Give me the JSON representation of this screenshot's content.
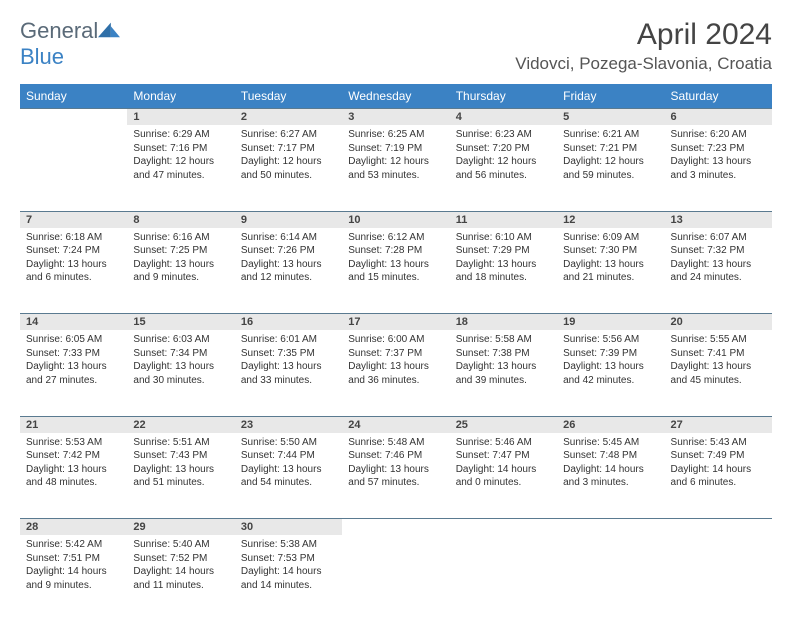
{
  "logo": {
    "word1": "General",
    "word2": "Blue"
  },
  "title": "April 2024",
  "location": "Vidovci, Pozega-Slavonia, Croatia",
  "colors": {
    "header_bg": "#3b82c4",
    "header_text": "#ffffff",
    "daynum_bg": "#e8e8e8",
    "rule": "#5a7a90",
    "body_text": "#333333"
  },
  "dayNames": [
    "Sunday",
    "Monday",
    "Tuesday",
    "Wednesday",
    "Thursday",
    "Friday",
    "Saturday"
  ],
  "weeks": [
    [
      null,
      {
        "n": "1",
        "sr": "Sunrise: 6:29 AM",
        "ss": "Sunset: 7:16 PM",
        "dl": "Daylight: 12 hours and 47 minutes."
      },
      {
        "n": "2",
        "sr": "Sunrise: 6:27 AM",
        "ss": "Sunset: 7:17 PM",
        "dl": "Daylight: 12 hours and 50 minutes."
      },
      {
        "n": "3",
        "sr": "Sunrise: 6:25 AM",
        "ss": "Sunset: 7:19 PM",
        "dl": "Daylight: 12 hours and 53 minutes."
      },
      {
        "n": "4",
        "sr": "Sunrise: 6:23 AM",
        "ss": "Sunset: 7:20 PM",
        "dl": "Daylight: 12 hours and 56 minutes."
      },
      {
        "n": "5",
        "sr": "Sunrise: 6:21 AM",
        "ss": "Sunset: 7:21 PM",
        "dl": "Daylight: 12 hours and 59 minutes."
      },
      {
        "n": "6",
        "sr": "Sunrise: 6:20 AM",
        "ss": "Sunset: 7:23 PM",
        "dl": "Daylight: 13 hours and 3 minutes."
      }
    ],
    [
      {
        "n": "7",
        "sr": "Sunrise: 6:18 AM",
        "ss": "Sunset: 7:24 PM",
        "dl": "Daylight: 13 hours and 6 minutes."
      },
      {
        "n": "8",
        "sr": "Sunrise: 6:16 AM",
        "ss": "Sunset: 7:25 PM",
        "dl": "Daylight: 13 hours and 9 minutes."
      },
      {
        "n": "9",
        "sr": "Sunrise: 6:14 AM",
        "ss": "Sunset: 7:26 PM",
        "dl": "Daylight: 13 hours and 12 minutes."
      },
      {
        "n": "10",
        "sr": "Sunrise: 6:12 AM",
        "ss": "Sunset: 7:28 PM",
        "dl": "Daylight: 13 hours and 15 minutes."
      },
      {
        "n": "11",
        "sr": "Sunrise: 6:10 AM",
        "ss": "Sunset: 7:29 PM",
        "dl": "Daylight: 13 hours and 18 minutes."
      },
      {
        "n": "12",
        "sr": "Sunrise: 6:09 AM",
        "ss": "Sunset: 7:30 PM",
        "dl": "Daylight: 13 hours and 21 minutes."
      },
      {
        "n": "13",
        "sr": "Sunrise: 6:07 AM",
        "ss": "Sunset: 7:32 PM",
        "dl": "Daylight: 13 hours and 24 minutes."
      }
    ],
    [
      {
        "n": "14",
        "sr": "Sunrise: 6:05 AM",
        "ss": "Sunset: 7:33 PM",
        "dl": "Daylight: 13 hours and 27 minutes."
      },
      {
        "n": "15",
        "sr": "Sunrise: 6:03 AM",
        "ss": "Sunset: 7:34 PM",
        "dl": "Daylight: 13 hours and 30 minutes."
      },
      {
        "n": "16",
        "sr": "Sunrise: 6:01 AM",
        "ss": "Sunset: 7:35 PM",
        "dl": "Daylight: 13 hours and 33 minutes."
      },
      {
        "n": "17",
        "sr": "Sunrise: 6:00 AM",
        "ss": "Sunset: 7:37 PM",
        "dl": "Daylight: 13 hours and 36 minutes."
      },
      {
        "n": "18",
        "sr": "Sunrise: 5:58 AM",
        "ss": "Sunset: 7:38 PM",
        "dl": "Daylight: 13 hours and 39 minutes."
      },
      {
        "n": "19",
        "sr": "Sunrise: 5:56 AM",
        "ss": "Sunset: 7:39 PM",
        "dl": "Daylight: 13 hours and 42 minutes."
      },
      {
        "n": "20",
        "sr": "Sunrise: 5:55 AM",
        "ss": "Sunset: 7:41 PM",
        "dl": "Daylight: 13 hours and 45 minutes."
      }
    ],
    [
      {
        "n": "21",
        "sr": "Sunrise: 5:53 AM",
        "ss": "Sunset: 7:42 PM",
        "dl": "Daylight: 13 hours and 48 minutes."
      },
      {
        "n": "22",
        "sr": "Sunrise: 5:51 AM",
        "ss": "Sunset: 7:43 PM",
        "dl": "Daylight: 13 hours and 51 minutes."
      },
      {
        "n": "23",
        "sr": "Sunrise: 5:50 AM",
        "ss": "Sunset: 7:44 PM",
        "dl": "Daylight: 13 hours and 54 minutes."
      },
      {
        "n": "24",
        "sr": "Sunrise: 5:48 AM",
        "ss": "Sunset: 7:46 PM",
        "dl": "Daylight: 13 hours and 57 minutes."
      },
      {
        "n": "25",
        "sr": "Sunrise: 5:46 AM",
        "ss": "Sunset: 7:47 PM",
        "dl": "Daylight: 14 hours and 0 minutes."
      },
      {
        "n": "26",
        "sr": "Sunrise: 5:45 AM",
        "ss": "Sunset: 7:48 PM",
        "dl": "Daylight: 14 hours and 3 minutes."
      },
      {
        "n": "27",
        "sr": "Sunrise: 5:43 AM",
        "ss": "Sunset: 7:49 PM",
        "dl": "Daylight: 14 hours and 6 minutes."
      }
    ],
    [
      {
        "n": "28",
        "sr": "Sunrise: 5:42 AM",
        "ss": "Sunset: 7:51 PM",
        "dl": "Daylight: 14 hours and 9 minutes."
      },
      {
        "n": "29",
        "sr": "Sunrise: 5:40 AM",
        "ss": "Sunset: 7:52 PM",
        "dl": "Daylight: 14 hours and 11 minutes."
      },
      {
        "n": "30",
        "sr": "Sunrise: 5:38 AM",
        "ss": "Sunset: 7:53 PM",
        "dl": "Daylight: 14 hours and 14 minutes."
      },
      null,
      null,
      null,
      null
    ]
  ]
}
